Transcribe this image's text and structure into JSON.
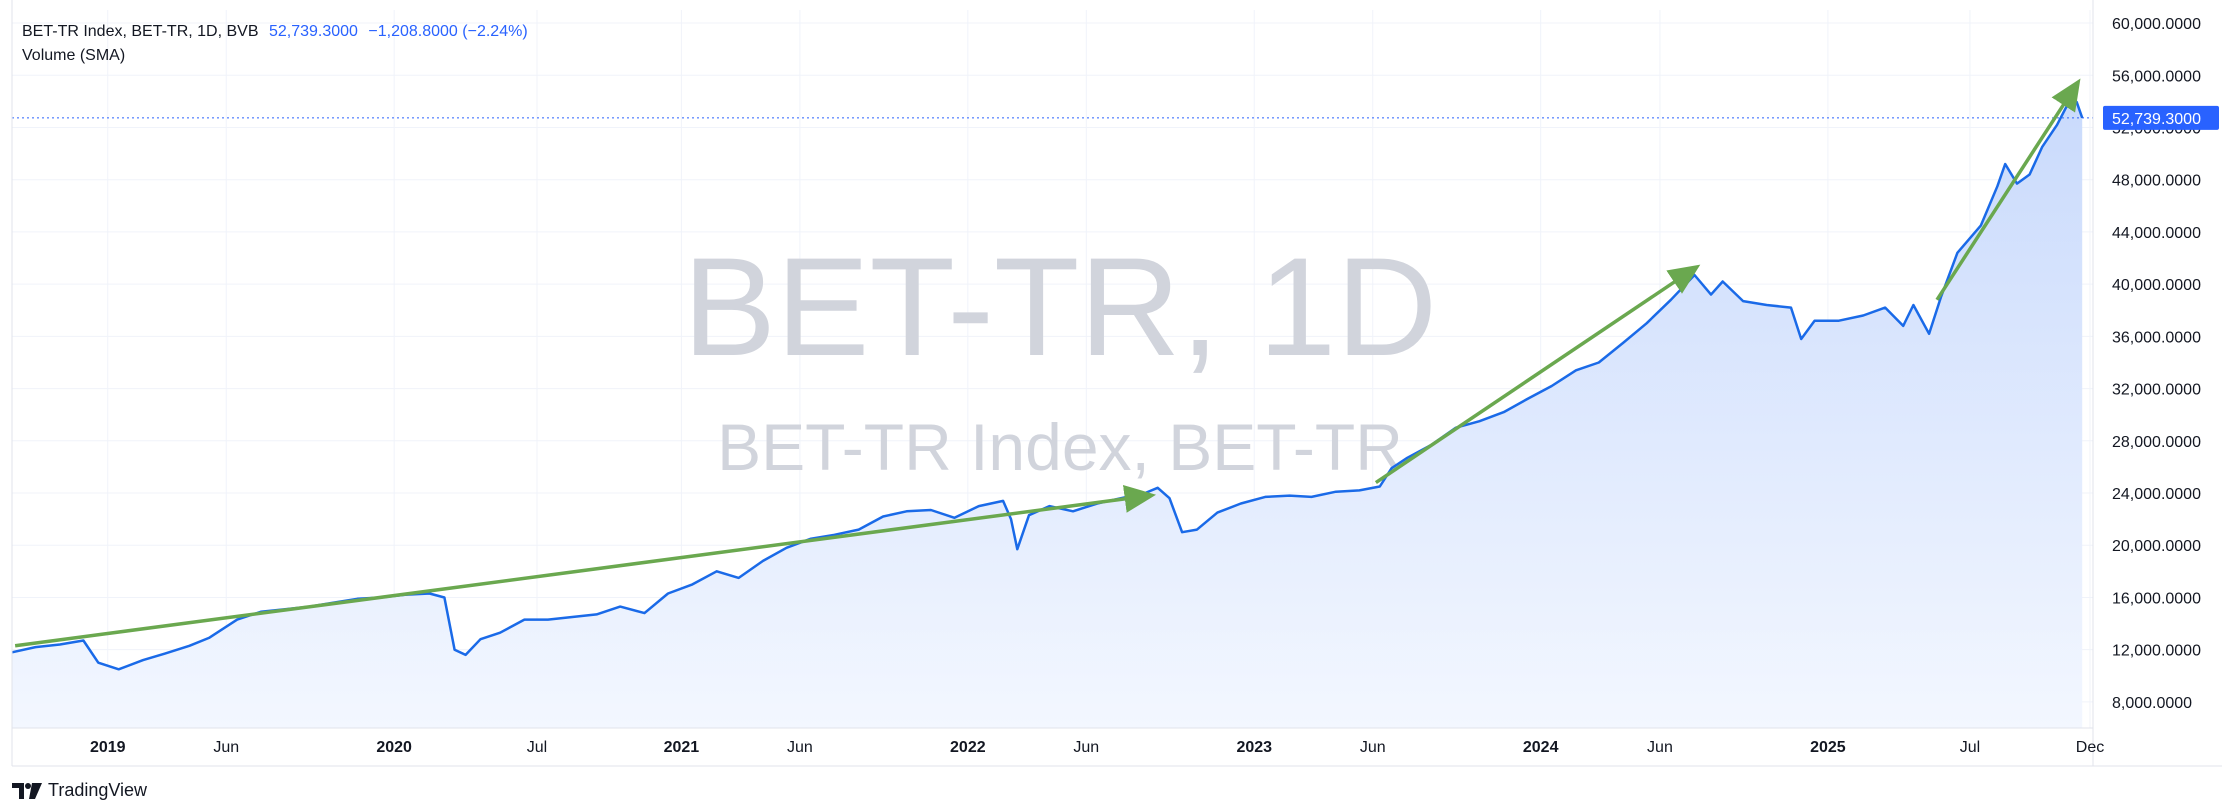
{
  "legend": {
    "symbol_line": "BET-TR Index, BET-TR, 1D, BVB",
    "last": "52,739.3000",
    "change": "−1,208.8000 (−2.24%)",
    "indicator": "Volume (SMA)"
  },
  "watermark": {
    "line1": "BET-TR, 1D",
    "line2": "BET-TR Index, BET-TR"
  },
  "footer": {
    "brand": "TradingView"
  },
  "colors": {
    "line": "#1a6ae8",
    "area_top": "#c9dafc",
    "area_bottom": "#f3f7ff",
    "arrow": "#6aa84f",
    "price_tag": "#2962ff"
  },
  "chart_data": {
    "type": "area",
    "title": "BET-TR Index, BET-TR, 1D, BVB",
    "last_price_label": "52,739.3000",
    "ylim": [
      6000,
      61000
    ],
    "y_ticks": [
      {
        "value": 8000,
        "label": "8,000.0000"
      },
      {
        "value": 12000,
        "label": "12,000.0000"
      },
      {
        "value": 16000,
        "label": "16,000.0000"
      },
      {
        "value": 20000,
        "label": "20,000.0000"
      },
      {
        "value": 24000,
        "label": "24,000.0000"
      },
      {
        "value": 28000,
        "label": "28,000.0000"
      },
      {
        "value": 32000,
        "label": "32,000.0000"
      },
      {
        "value": 36000,
        "label": "36,000.0000"
      },
      {
        "value": 40000,
        "label": "40,000.0000"
      },
      {
        "value": 44000,
        "label": "44,000.0000"
      },
      {
        "value": 48000,
        "label": "48,000.0000"
      },
      {
        "value": 52000,
        "label": "52,000.0000"
      },
      {
        "value": 56000,
        "label": "56,000.0000"
      },
      {
        "value": 60000,
        "label": "60,000.0000"
      }
    ],
    "x_ticks": [
      {
        "date": "2019-01-01",
        "label": "2019",
        "year": true
      },
      {
        "date": "2019-06-01",
        "label": "Jun",
        "year": false
      },
      {
        "date": "2020-01-01",
        "label": "2020",
        "year": true
      },
      {
        "date": "2020-07-01",
        "label": "Jul",
        "year": false
      },
      {
        "date": "2021-01-01",
        "label": "2021",
        "year": true
      },
      {
        "date": "2021-06-01",
        "label": "Jun",
        "year": false
      },
      {
        "date": "2022-01-01",
        "label": "2022",
        "year": true
      },
      {
        "date": "2022-06-01",
        "label": "Jun",
        "year": false
      },
      {
        "date": "2023-01-01",
        "label": "2023",
        "year": true
      },
      {
        "date": "2023-06-01",
        "label": "Jun",
        "year": false
      },
      {
        "date": "2024-01-01",
        "label": "2024",
        "year": true
      },
      {
        "date": "2024-06-01",
        "label": "Jun",
        "year": false
      },
      {
        "date": "2025-01-01",
        "label": "2025",
        "year": true
      },
      {
        "date": "2025-07-01",
        "label": "Jul",
        "year": false
      },
      {
        "date": "2025-12-01",
        "label": "Dec",
        "year": false
      }
    ],
    "series": [
      {
        "points": [
          [
            "2018-09-01",
            11800
          ],
          [
            "2018-10-01",
            12200
          ],
          [
            "2018-11-01",
            12400
          ],
          [
            "2018-12-01",
            12700
          ],
          [
            "2018-12-20",
            11000
          ],
          [
            "2019-01-15",
            10500
          ],
          [
            "2019-02-15",
            11200
          ],
          [
            "2019-03-15",
            11700
          ],
          [
            "2019-04-15",
            12300
          ],
          [
            "2019-05-10",
            12900
          ],
          [
            "2019-06-15",
            14300
          ],
          [
            "2019-07-15",
            14900
          ],
          [
            "2019-08-15",
            15100
          ],
          [
            "2019-09-15",
            15300
          ],
          [
            "2019-10-15",
            15600
          ],
          [
            "2019-11-15",
            15900
          ],
          [
            "2019-12-15",
            16000
          ],
          [
            "2020-01-15",
            16200
          ],
          [
            "2020-02-15",
            16300
          ],
          [
            "2020-03-05",
            16000
          ],
          [
            "2020-03-18",
            12000
          ],
          [
            "2020-04-01",
            11600
          ],
          [
            "2020-04-20",
            12800
          ],
          [
            "2020-05-15",
            13300
          ],
          [
            "2020-06-15",
            14300
          ],
          [
            "2020-07-15",
            14300
          ],
          [
            "2020-08-15",
            14500
          ],
          [
            "2020-09-15",
            14700
          ],
          [
            "2020-10-15",
            15300
          ],
          [
            "2020-11-15",
            14800
          ],
          [
            "2020-12-15",
            16300
          ],
          [
            "2021-01-15",
            17000
          ],
          [
            "2021-02-15",
            18000
          ],
          [
            "2021-03-15",
            17500
          ],
          [
            "2021-04-15",
            18800
          ],
          [
            "2021-05-15",
            19800
          ],
          [
            "2021-06-15",
            20500
          ],
          [
            "2021-07-15",
            20800
          ],
          [
            "2021-08-15",
            21200
          ],
          [
            "2021-09-15",
            22200
          ],
          [
            "2021-10-15",
            22600
          ],
          [
            "2021-11-15",
            22700
          ],
          [
            "2021-12-15",
            22100
          ],
          [
            "2022-01-15",
            23000
          ],
          [
            "2022-02-15",
            23400
          ],
          [
            "2022-02-25",
            22000
          ],
          [
            "2022-03-05",
            19700
          ],
          [
            "2022-03-20",
            22300
          ],
          [
            "2022-04-15",
            23000
          ],
          [
            "2022-05-15",
            22600
          ],
          [
            "2022-06-15",
            23200
          ],
          [
            "2022-07-15",
            23600
          ],
          [
            "2022-08-15",
            24000
          ],
          [
            "2022-08-31",
            24400
          ],
          [
            "2022-09-15",
            23600
          ],
          [
            "2022-10-01",
            21000
          ],
          [
            "2022-10-20",
            21200
          ],
          [
            "2022-11-15",
            22500
          ],
          [
            "2022-12-15",
            23200
          ],
          [
            "2023-01-15",
            23700
          ],
          [
            "2023-02-15",
            23800
          ],
          [
            "2023-03-15",
            23700
          ],
          [
            "2023-04-15",
            24100
          ],
          [
            "2023-05-15",
            24200
          ],
          [
            "2023-06-10",
            24500
          ],
          [
            "2023-06-25",
            25900
          ],
          [
            "2023-07-15",
            26700
          ],
          [
            "2023-08-15",
            27700
          ],
          [
            "2023-09-15",
            29000
          ],
          [
            "2023-10-15",
            29500
          ],
          [
            "2023-11-15",
            30200
          ],
          [
            "2023-12-15",
            31200
          ],
          [
            "2024-01-15",
            32200
          ],
          [
            "2024-02-15",
            33400
          ],
          [
            "2024-03-15",
            34000
          ],
          [
            "2024-04-15",
            35500
          ],
          [
            "2024-05-15",
            37000
          ],
          [
            "2024-06-15",
            38800
          ],
          [
            "2024-07-15",
            40700
          ],
          [
            "2024-08-05",
            39200
          ],
          [
            "2024-08-20",
            40200
          ],
          [
            "2024-09-15",
            38700
          ],
          [
            "2024-10-15",
            38400
          ],
          [
            "2024-11-15",
            38200
          ],
          [
            "2024-11-28",
            35800
          ],
          [
            "2024-12-15",
            37200
          ],
          [
            "2025-01-15",
            37200
          ],
          [
            "2025-02-15",
            37600
          ],
          [
            "2025-03-15",
            38200
          ],
          [
            "2025-04-07",
            36800
          ],
          [
            "2025-04-20",
            38400
          ],
          [
            "2025-05-10",
            36200
          ],
          [
            "2025-05-25",
            39000
          ],
          [
            "2025-06-15",
            42400
          ],
          [
            "2025-07-15",
            44500
          ],
          [
            "2025-08-05",
            47500
          ],
          [
            "2025-08-15",
            49200
          ],
          [
            "2025-08-30",
            47700
          ],
          [
            "2025-09-15",
            48400
          ],
          [
            "2025-10-01",
            50500
          ],
          [
            "2025-10-20",
            52200
          ],
          [
            "2025-11-07",
            54300
          ],
          [
            "2025-11-14",
            53948
          ],
          [
            "2025-11-21",
            52739
          ]
        ]
      }
    ],
    "annotations": [
      {
        "type": "arrow",
        "from": [
          "2018-09-05",
          12300
        ],
        "to": [
          "2022-08-20",
          23800
        ]
      },
      {
        "type": "arrow",
        "from": [
          "2023-06-05",
          24800
        ],
        "to": [
          "2024-07-15",
          41200
        ]
      },
      {
        "type": "arrow",
        "from": [
          "2025-05-20",
          38800
        ],
        "to": [
          "2025-11-14",
          55300
        ]
      }
    ]
  }
}
